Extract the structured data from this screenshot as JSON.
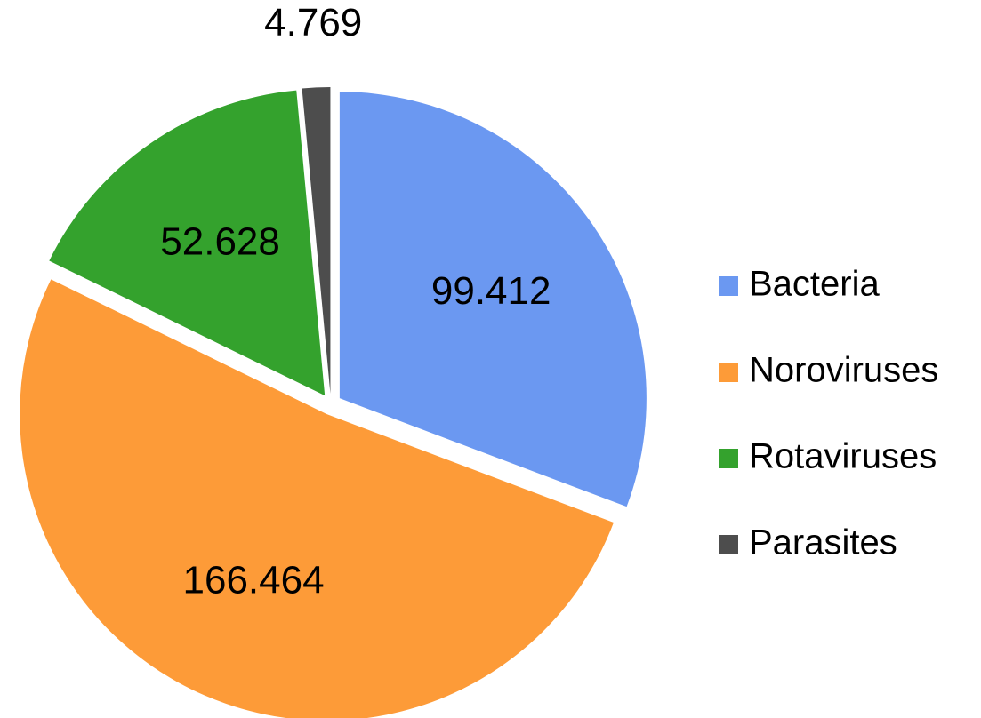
{
  "chart_data": {
    "type": "pie",
    "categories": [
      "Bacteria",
      "Noroviruses",
      "Rotaviruses",
      "Parasites"
    ],
    "values": [
      99.412,
      166.464,
      52.628,
      4.769
    ],
    "colors": [
      "#6b98f1",
      "#fd9b38",
      "#34a22d",
      "#4d4d4d"
    ],
    "legend": "right"
  }
}
